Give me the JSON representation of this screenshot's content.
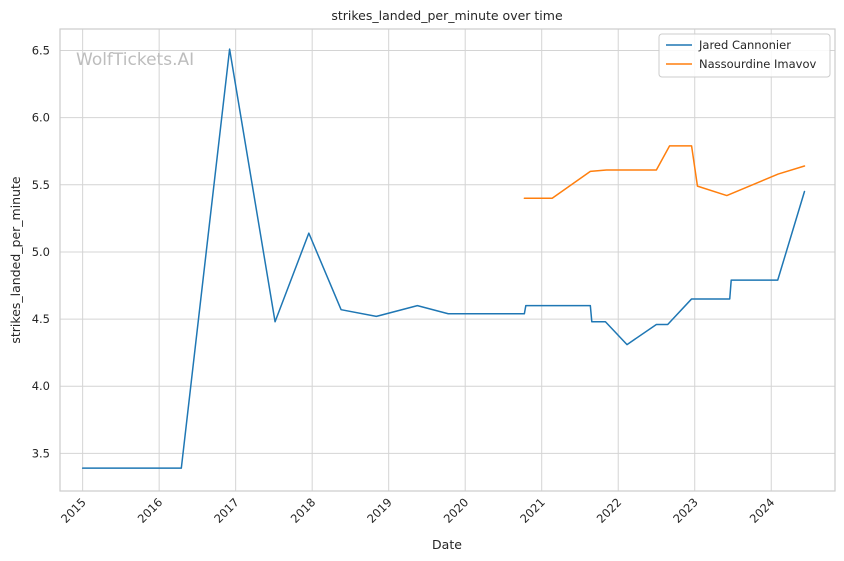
{
  "chart_data": {
    "type": "line",
    "title": "strikes_landed_per_minute over time",
    "xlabel": "Date",
    "ylabel": "strikes_landed_per_minute",
    "watermark": "WolfTickets.AI",
    "xlim": [
      "2014-09-15",
      "2024-11-01"
    ],
    "ylim": [
      3.22,
      6.66
    ],
    "x_ticks": [
      "2015",
      "2016",
      "2017",
      "2018",
      "2019",
      "2020",
      "2021",
      "2022",
      "2023",
      "2024"
    ],
    "y_ticks": [
      3.5,
      4.0,
      4.5,
      5.0,
      5.5,
      6.0,
      6.5
    ],
    "y_tick_labels": [
      "3.5",
      "4.0",
      "4.5",
      "5.0",
      "5.5",
      "6.0",
      "6.5"
    ],
    "grid": true,
    "legend_position": "top-right",
    "series": [
      {
        "name": "Jared Cannonier",
        "color": "#1f77b4",
        "points": [
          [
            "2015-01-01",
            3.39
          ],
          [
            "2016-04-16",
            3.39
          ],
          [
            "2016-12-03",
            6.51
          ],
          [
            "2017-07-08",
            4.48
          ],
          [
            "2017-12-16",
            5.14
          ],
          [
            "2018-05-19",
            4.57
          ],
          [
            "2018-11-03",
            4.52
          ],
          [
            "2019-05-18",
            4.6
          ],
          [
            "2019-10-12",
            4.54
          ],
          [
            "2020-10-10",
            4.54
          ],
          [
            "2020-10-17",
            4.6
          ],
          [
            "2021-08-21",
            4.6
          ],
          [
            "2021-08-28",
            4.48
          ],
          [
            "2021-11-01",
            4.48
          ],
          [
            "2022-02-12",
            4.31
          ],
          [
            "2022-07-02",
            4.46
          ],
          [
            "2022-08-25",
            4.46
          ],
          [
            "2022-12-17",
            4.65
          ],
          [
            "2023-06-17",
            4.65
          ],
          [
            "2023-06-24",
            4.79
          ],
          [
            "2024-02-01",
            4.79
          ],
          [
            "2024-06-08",
            5.45
          ]
        ]
      },
      {
        "name": "Nassourdine Imavov",
        "color": "#ff7f0e",
        "points": [
          [
            "2020-10-10",
            5.4
          ],
          [
            "2021-02-20",
            5.4
          ],
          [
            "2021-08-21",
            5.6
          ],
          [
            "2021-11-06",
            5.61
          ],
          [
            "2022-07-02",
            5.61
          ],
          [
            "2022-09-03",
            5.79
          ],
          [
            "2022-12-17",
            5.79
          ],
          [
            "2023-01-14",
            5.49
          ],
          [
            "2023-06-03",
            5.42
          ],
          [
            "2024-02-03",
            5.58
          ],
          [
            "2024-06-08",
            5.64
          ]
        ]
      }
    ]
  }
}
